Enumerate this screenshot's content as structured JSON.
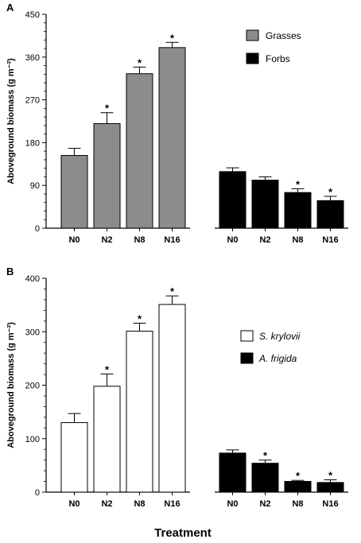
{
  "chart_data": [
    {
      "type": "bar",
      "panel_label": "A",
      "ylabel": "Aboveground biomass (g m⁻²)",
      "ylim": [
        0,
        450
      ],
      "yticks": [
        "0",
        "90",
        "180",
        "270",
        "360",
        "450"
      ],
      "ytick_values": [
        0,
        90,
        180,
        270,
        360,
        450
      ],
      "groups": [
        {
          "name": "Grasses",
          "color": "#8c8c8c",
          "categories": [
            "N0",
            "N2",
            "N8",
            "N16"
          ],
          "values": [
            153,
            220,
            325,
            380
          ],
          "errors": [
            15,
            23,
            14,
            11
          ],
          "significant": [
            "",
            "*",
            "*",
            "*"
          ]
        },
        {
          "name": "Forbs",
          "color": "#000000",
          "categories": [
            "N0",
            "N2",
            "N8",
            "N16"
          ],
          "values": [
            119,
            101,
            75,
            58
          ],
          "errors": [
            8,
            7,
            8,
            9
          ],
          "significant": [
            "",
            "",
            "*",
            "*"
          ]
        }
      ],
      "legend": {
        "position": "top-right",
        "entries": [
          "Grasses",
          "Forbs"
        ]
      },
      "grid": false
    },
    {
      "type": "bar",
      "panel_label": "B",
      "ylabel": "Aboveground biomass (g m⁻²)",
      "ylim": [
        0,
        400
      ],
      "yticks": [
        "0",
        "100",
        "200",
        "300",
        "400"
      ],
      "ytick_values": [
        0,
        100,
        200,
        300,
        400
      ],
      "groups": [
        {
          "name": "S. krylovii",
          "color": "#ffffff",
          "categories": [
            "N0",
            "N2",
            "N8",
            "N16"
          ],
          "values": [
            130,
            198,
            301,
            351
          ],
          "errors": [
            17,
            23,
            15,
            16
          ],
          "significant": [
            "",
            "*",
            "*",
            "*"
          ]
        },
        {
          "name": "A. frigida",
          "color": "#000000",
          "categories": [
            "N0",
            "N2",
            "N8",
            "N16"
          ],
          "values": [
            73,
            54,
            20,
            18
          ],
          "errors": [
            6,
            6,
            2,
            5
          ],
          "significant": [
            "",
            "*",
            "*",
            "*"
          ]
        }
      ],
      "legend": {
        "position": "right",
        "entries": [
          "S. krylovii",
          "A. frigida"
        ]
      },
      "grid": false
    }
  ],
  "xtitle": "Treatment"
}
